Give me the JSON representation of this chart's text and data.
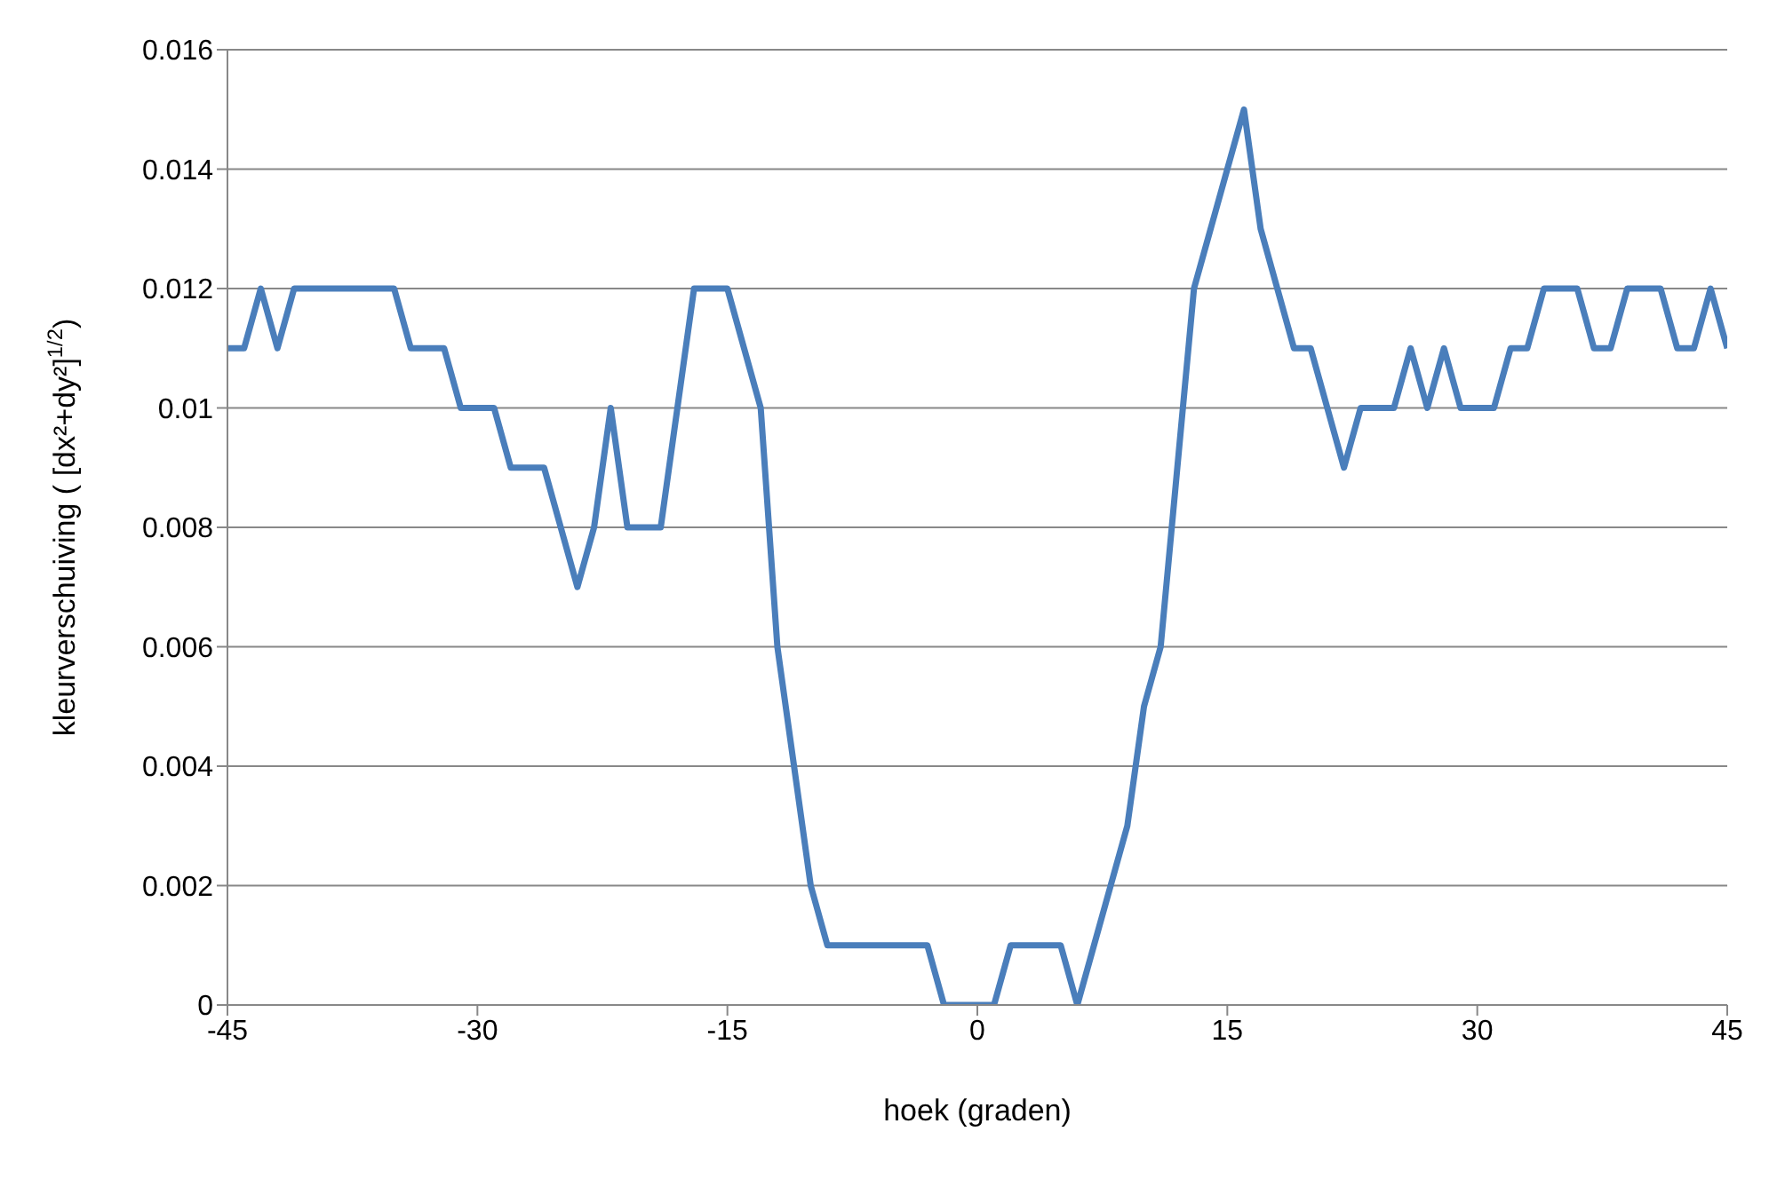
{
  "chart_data": {
    "type": "line",
    "xlabel": "hoek (graden)",
    "ylabel": "kleurverschuiving ( [dx²+dy²]$^{1/2}$)",
    "x": [
      -45,
      -44,
      -43,
      -42,
      -41,
      -40,
      -39,
      -38,
      -37,
      -36,
      -35,
      -34,
      -33,
      -32,
      -31,
      -30,
      -29,
      -28,
      -27,
      -26,
      -25,
      -24,
      -23,
      -22,
      -21,
      -20,
      -19,
      -18,
      -17,
      -16,
      -15,
      -14,
      -13,
      -12,
      -11,
      -10,
      -9,
      -8,
      -7,
      -6,
      -5,
      -4,
      -3,
      -2,
      -1,
      0,
      1,
      2,
      3,
      4,
      5,
      6,
      7,
      8,
      9,
      10,
      11,
      12,
      13,
      14,
      15,
      16,
      17,
      18,
      19,
      20,
      21,
      22,
      23,
      24,
      25,
      26,
      27,
      28,
      29,
      30,
      31,
      32,
      33,
      34,
      35,
      36,
      37,
      38,
      39,
      40,
      41,
      42,
      43,
      44,
      45
    ],
    "series": [
      {
        "color": "#4a7ebb",
        "values": [
          0.011,
          0.011,
          0.012,
          0.011,
          0.012,
          0.012,
          0.012,
          0.012,
          0.012,
          0.012,
          0.012,
          0.011,
          0.011,
          0.011,
          0.01,
          0.01,
          0.01,
          0.009,
          0.009,
          0.009,
          0.008,
          0.007,
          0.008,
          0.01,
          0.008,
          0.008,
          0.008,
          0.01,
          0.012,
          0.012,
          0.012,
          0.011,
          0.01,
          0.006,
          0.004,
          0.002,
          0.001,
          0.001,
          0.001,
          0.001,
          0.001,
          0.001,
          0.001,
          0,
          0,
          0,
          0,
          0.001,
          0.001,
          0.001,
          0.001,
          0,
          0.001,
          0.002,
          0.003,
          0.005,
          0.006,
          0.009,
          0.012,
          0.013,
          0.014,
          0.015,
          0.013,
          0.012,
          0.011,
          0.011,
          0.01,
          0.009,
          0.01,
          0.01,
          0.01,
          0.011,
          0.01,
          0.011,
          0.01,
          0.01,
          0.01,
          0.011,
          0.011,
          0.012,
          0.012,
          0.012,
          0.011,
          0.011,
          0.012,
          0.012,
          0.012,
          0.011,
          0.011,
          0.012,
          0.011
        ]
      }
    ],
    "xlim": [
      -45,
      45
    ],
    "xticks": [
      -45,
      -30,
      -15,
      0,
      15,
      30,
      45
    ],
    "ylim": [
      0,
      0.016
    ],
    "yticks": [
      0,
      0.002,
      0.004,
      0.006,
      0.008,
      0.01,
      0.012,
      0.014,
      0.016
    ],
    "grid": "y",
    "marker": "none",
    "line_style": "solid"
  }
}
